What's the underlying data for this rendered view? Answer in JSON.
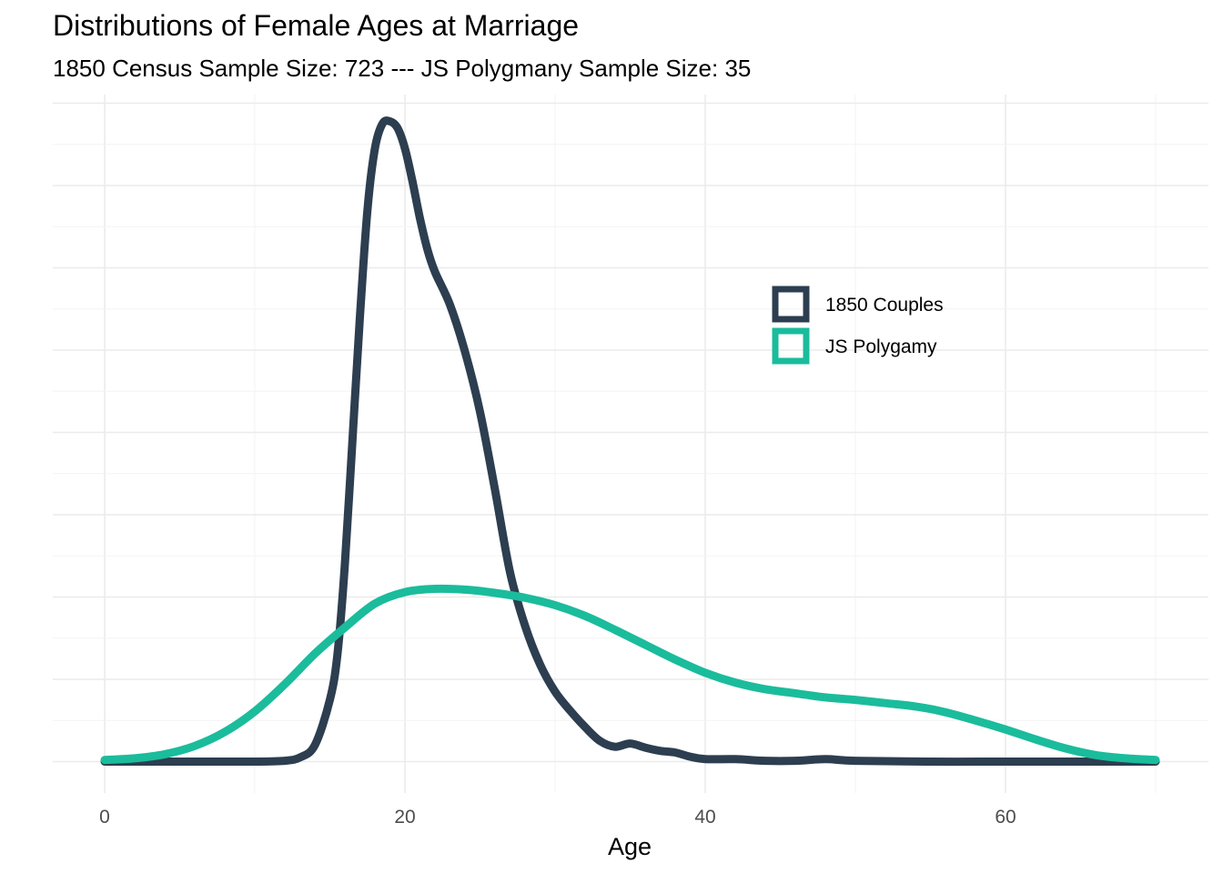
{
  "chart_data": {
    "type": "line",
    "title": "Distributions of Female Ages at Marriage",
    "subtitle": "1850 Census Sample Size: 723 --- JS Polygmany Sample Size: 35",
    "xlabel": "Age",
    "ylabel": "",
    "xlim": [
      -3.5,
      71
    ],
    "ylim": [
      -0.004,
      0.0825
    ],
    "xticks": [
      0,
      20,
      40,
      60
    ],
    "y_tick_labels_shown": false,
    "grid": true,
    "legend_position": "right, inside plot",
    "series": [
      {
        "name": "1850 Couples",
        "color": "#2c3e50",
        "x": [
          0,
          5,
          10,
          12,
          13,
          14,
          15,
          15.5,
          16,
          16.5,
          17,
          17.5,
          18,
          18.5,
          19,
          19.5,
          20,
          20.5,
          21,
          21.5,
          22,
          23,
          24,
          25,
          26,
          27,
          28,
          29,
          30,
          31,
          32,
          33,
          34,
          35,
          36,
          37,
          38,
          39,
          40,
          42,
          44,
          46,
          48,
          50,
          55,
          60,
          65,
          70
        ],
        "y": [
          0,
          0,
          0,
          0.0001,
          0.0005,
          0.002,
          0.0075,
          0.013,
          0.024,
          0.039,
          0.054,
          0.067,
          0.0745,
          0.0775,
          0.0778,
          0.077,
          0.0745,
          0.0705,
          0.066,
          0.0622,
          0.0595,
          0.0555,
          0.0498,
          0.0425,
          0.033,
          0.023,
          0.0165,
          0.0118,
          0.0085,
          0.0062,
          0.0042,
          0.0025,
          0.0018,
          0.0022,
          0.0017,
          0.0013,
          0.0011,
          0.0006,
          0.0003,
          0.0003,
          0.0001,
          0.0001,
          0.0003,
          0.0001,
          0,
          0,
          0,
          0
        ]
      },
      {
        "name": "JS Polygamy",
        "color": "#1abc9c",
        "x": [
          0,
          2,
          4,
          6,
          8,
          10,
          12,
          14,
          16,
          18,
          20,
          22,
          24,
          26,
          28,
          30,
          32,
          34,
          36,
          38,
          40,
          42,
          44,
          46,
          48,
          50,
          52,
          54,
          56,
          58,
          60,
          62,
          64,
          66,
          68,
          70
        ],
        "y": [
          0.0002,
          0.0004,
          0.0009,
          0.0019,
          0.0036,
          0.0061,
          0.0094,
          0.0131,
          0.0163,
          0.0192,
          0.0206,
          0.021,
          0.0209,
          0.0205,
          0.0199,
          0.019,
          0.0177,
          0.016,
          0.0142,
          0.0124,
          0.0108,
          0.0096,
          0.0088,
          0.0083,
          0.0078,
          0.0075,
          0.0071,
          0.0067,
          0.006,
          0.005,
          0.0039,
          0.0027,
          0.0016,
          0.0008,
          0.0004,
          0.0002
        ]
      }
    ]
  }
}
